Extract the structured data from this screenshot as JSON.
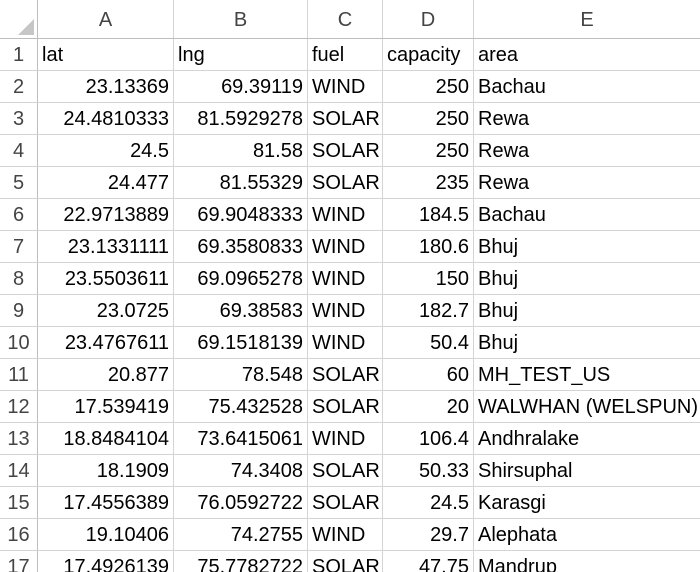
{
  "columns": [
    "A",
    "B",
    "C",
    "D",
    "E"
  ],
  "rows": [
    {
      "num": "1",
      "cells": [
        "lat",
        "lng",
        "fuel",
        "capacity",
        "area"
      ]
    },
    {
      "num": "2",
      "cells": [
        "23.13369",
        "69.39119",
        "WIND",
        "250",
        "Bachau"
      ]
    },
    {
      "num": "3",
      "cells": [
        "24.4810333",
        "81.5929278",
        "SOLAR",
        "250",
        "Rewa"
      ]
    },
    {
      "num": "4",
      "cells": [
        "24.5",
        "81.58",
        "SOLAR",
        "250",
        "Rewa"
      ]
    },
    {
      "num": "5",
      "cells": [
        "24.477",
        "81.55329",
        "SOLAR",
        "235",
        "Rewa"
      ]
    },
    {
      "num": "6",
      "cells": [
        "22.9713889",
        "69.9048333",
        "WIND",
        "184.5",
        "Bachau"
      ]
    },
    {
      "num": "7",
      "cells": [
        "23.1331111",
        "69.3580833",
        "WIND",
        "180.6",
        "Bhuj"
      ]
    },
    {
      "num": "8",
      "cells": [
        "23.5503611",
        "69.0965278",
        "WIND",
        "150",
        "Bhuj"
      ]
    },
    {
      "num": "9",
      "cells": [
        "23.0725",
        "69.38583",
        "WIND",
        "182.7",
        "Bhuj"
      ]
    },
    {
      "num": "10",
      "cells": [
        "23.4767611",
        "69.1518139",
        "WIND",
        "50.4",
        "Bhuj"
      ]
    },
    {
      "num": "11",
      "cells": [
        "20.877",
        "78.548",
        "SOLAR",
        "60",
        "MH_TEST_US"
      ]
    },
    {
      "num": "12",
      "cells": [
        "17.539419",
        "75.432528",
        "SOLAR",
        "20",
        "WALWHAN (WELSPUN)"
      ]
    },
    {
      "num": "13",
      "cells": [
        "18.8484104",
        "73.6415061",
        "WIND",
        "106.4",
        "Andhralake"
      ]
    },
    {
      "num": "14",
      "cells": [
        "18.1909",
        "74.3408",
        "SOLAR",
        "50.33",
        "Shirsuphal"
      ]
    },
    {
      "num": "15",
      "cells": [
        "17.4556389",
        "76.0592722",
        "SOLAR",
        "24.5",
        "Karasgi"
      ]
    },
    {
      "num": "16",
      "cells": [
        "19.10406",
        "74.2755",
        "WIND",
        "29.7",
        "Alephata"
      ]
    },
    {
      "num": "17",
      "cells": [
        "17.4926139",
        "75.7782722",
        "SOLAR",
        "47.75",
        "Mandrup"
      ]
    }
  ]
}
